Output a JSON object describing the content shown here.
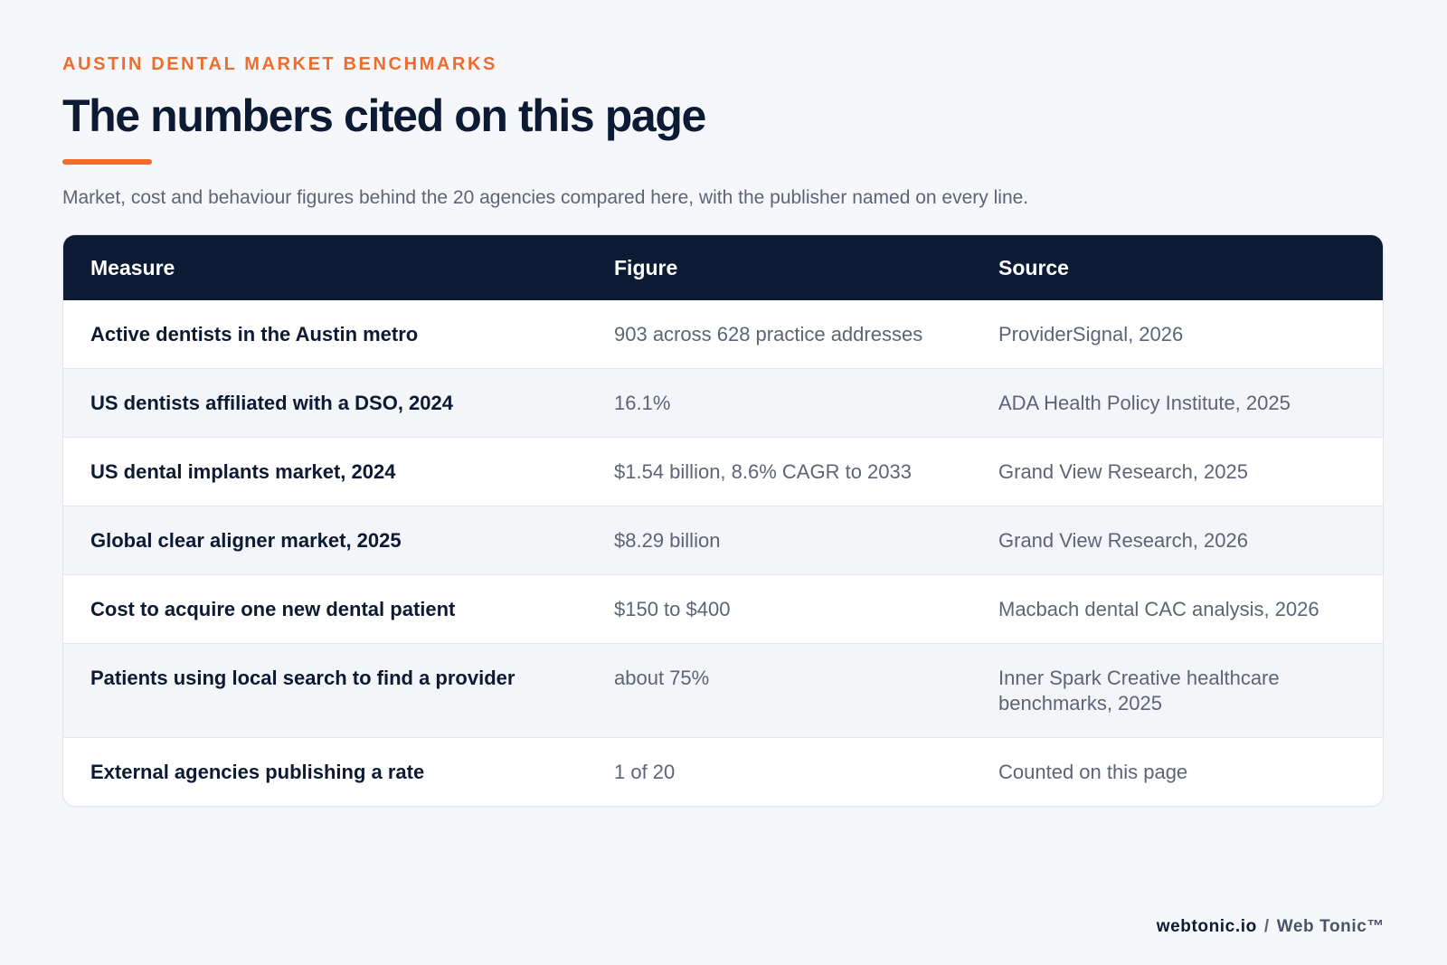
{
  "header": {
    "eyebrow": "AUSTIN DENTAL MARKET BENCHMARKS",
    "title": "The numbers cited on this page",
    "subtitle": "Market, cost and behaviour figures behind the 20 agencies compared here, with the publisher named on every line."
  },
  "table": {
    "columns": [
      "Measure",
      "Figure",
      "Source"
    ],
    "rows": [
      {
        "measure": "Active dentists in the Austin metro",
        "figure": "903 across 628 practice addresses",
        "source": "ProviderSignal, 2026"
      },
      {
        "measure": "US dentists affiliated with a DSO, 2024",
        "figure": "16.1%",
        "source": "ADA Health Policy Institute, 2025"
      },
      {
        "measure": "US dental implants market, 2024",
        "figure": "$1.54 billion, 8.6% CAGR to 2033",
        "source": "Grand View Research, 2025"
      },
      {
        "measure": "Global clear aligner market, 2025",
        "figure": "$8.29 billion",
        "source": "Grand View Research, 2026"
      },
      {
        "measure": "Cost to acquire one new dental patient",
        "figure": "$150 to $400",
        "source": "Macbach dental CAC analysis, 2026"
      },
      {
        "measure": "Patients using local search to find a provider",
        "figure": "about 75%",
        "source": "Inner Spark Creative healthcare benchmarks, 2025"
      },
      {
        "measure": "External agencies publishing a rate",
        "figure": "1 of 20",
        "source": "Counted on this page"
      }
    ]
  },
  "footer": {
    "domain": "webtonic.io",
    "separator": "/",
    "brand": "Web Tonic™"
  },
  "colors": {
    "accent": "#ef6c2f",
    "navy": "#0c1a33",
    "muted_text": "#5b6577",
    "background": "#f5f7fa",
    "row_alt": "#f3f5f9"
  }
}
